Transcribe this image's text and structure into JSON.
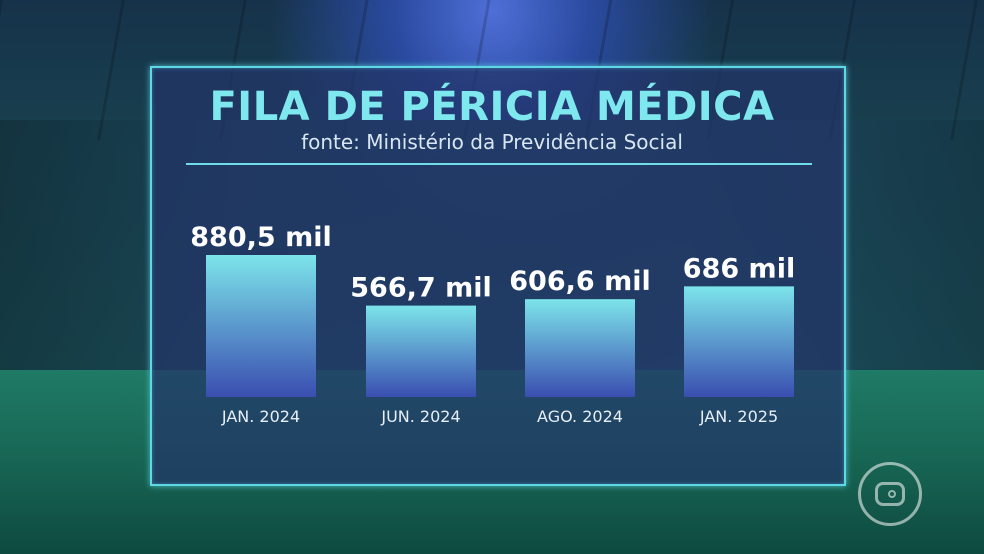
{
  "header": {
    "title": "FILA DE PÉRICIA MÉDICA",
    "subtitle": "fonte: Ministério da Previdência Social"
  },
  "chart_data": {
    "type": "bar",
    "categories": [
      "JAN. 2024",
      "JUN. 2024",
      "AGO. 2024",
      "JAN. 2025"
    ],
    "values": [
      880.5,
      566.7,
      606.6,
      686
    ],
    "value_labels": [
      "880,5 mil",
      "566,7 mil",
      "606,6 mil",
      "686 mil"
    ],
    "unit": "mil",
    "title": "FILA DE PÉRICIA MÉDICA",
    "subtitle": "fonte: Ministério da Previdência Social",
    "xlabel": "",
    "ylabel": "",
    "grid": false,
    "legend": "none",
    "colors": {
      "bar_top": "#7ce4ea",
      "bar_bottom": "#3a4eb0",
      "label": "#ffffff",
      "tick": "#e6eef6"
    }
  },
  "logo": {
    "icon": "globo-logo-icon"
  }
}
